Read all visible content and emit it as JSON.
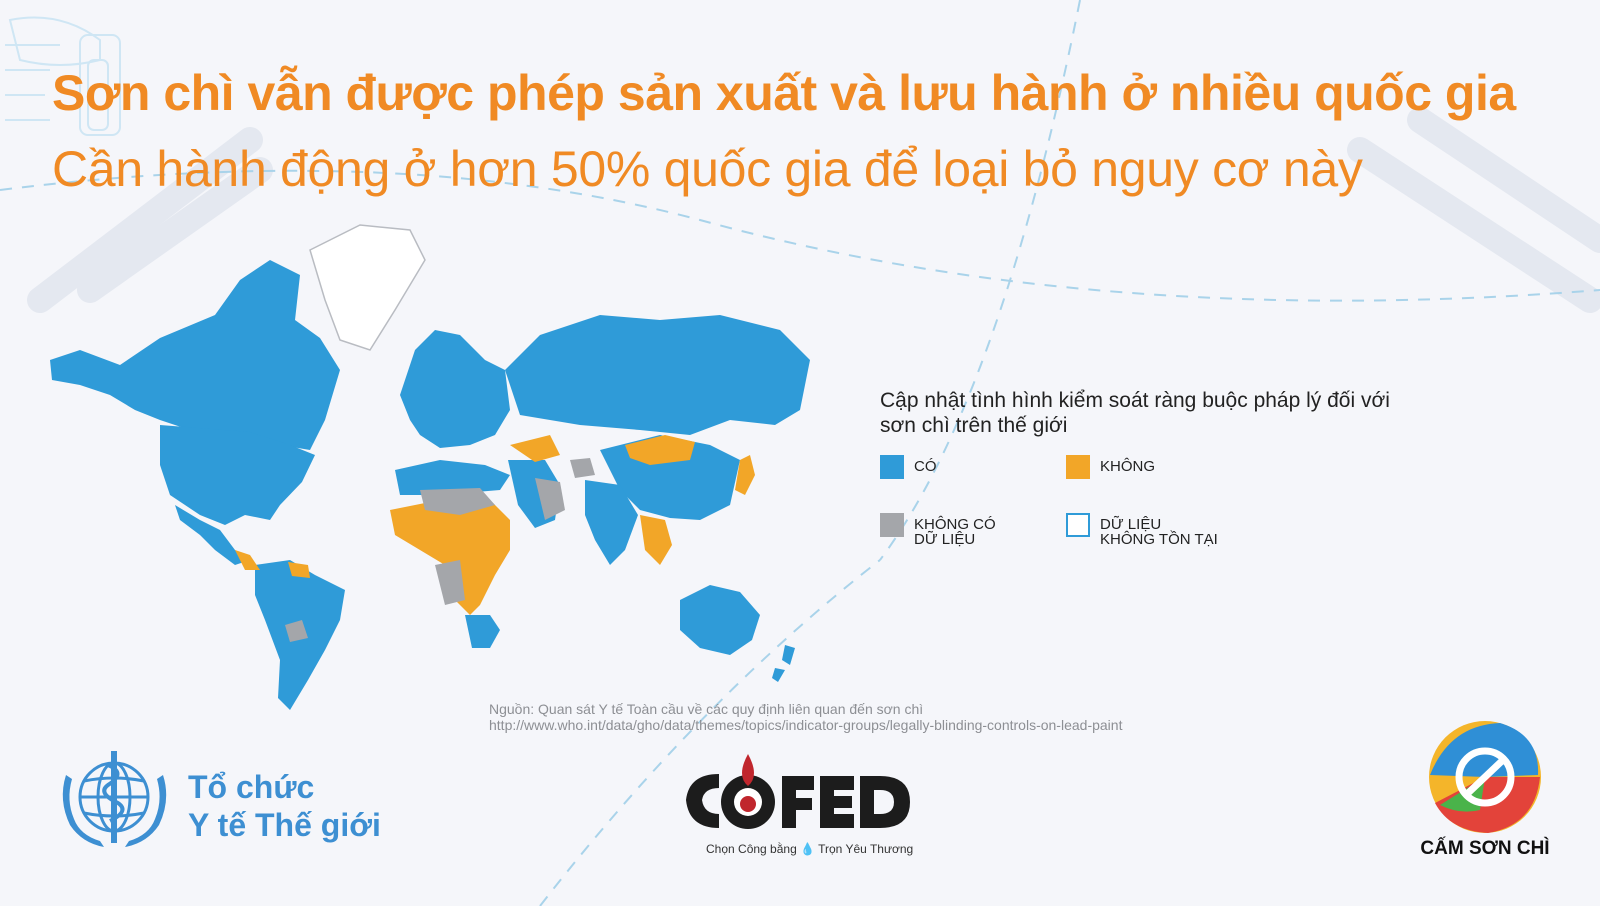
{
  "header": {
    "title": "Sơn chì vẫn được phép sản xuất và lưu hành ở nhiều quốc gia",
    "subtitle": "Cần hành động ở hơn 50% quốc gia để loại bỏ nguy cơ này"
  },
  "legend": {
    "title": "Cập nhật tình hình kiểm soát ràng buộc pháp lý đối với sơn chì trên thế giới",
    "items": [
      {
        "label": "CÓ",
        "color": "#2f9bd8"
      },
      {
        "label": "KHÔNG",
        "color": "#f2a628"
      },
      {
        "label": "KHÔNG CÓ\nDỮ LIỆU",
        "color": "#a4a6aa"
      },
      {
        "label": "DỮ LIỆU\nKHÔNG TỒN TẠI",
        "color": "#ffffff"
      }
    ]
  },
  "map": {
    "region": "world",
    "map_colors": {
      "yes": "#2f9bd8",
      "no": "#f2a628",
      "no_data": "#a4a6aa",
      "not_applicable": "#ffffff"
    },
    "no_law_regions": [
      "Mongolia",
      "Central Africa",
      "West Africa",
      "Southern Africa",
      "Southeast Asia",
      "Central America",
      "Venezuela",
      "Central Asia"
    ]
  },
  "source": {
    "line1": "Nguồn: Quan sát Y tế Toàn cầu về các quy định liên quan đến sơn chì",
    "line2": "http://www.who.int/data/gho/data/themes/topics/indicator-groups/legally-blinding-controls-on-lead-paint"
  },
  "footer": {
    "who_line1": "Tổ chức",
    "who_line2": "Y tế Thế giới",
    "cofed_logo_text": "COFED",
    "cofed_tagline": "Chọn Công bằng 💧 Trọn Yêu Thương",
    "ban_text": "CẤM SƠN CHÌ"
  }
}
